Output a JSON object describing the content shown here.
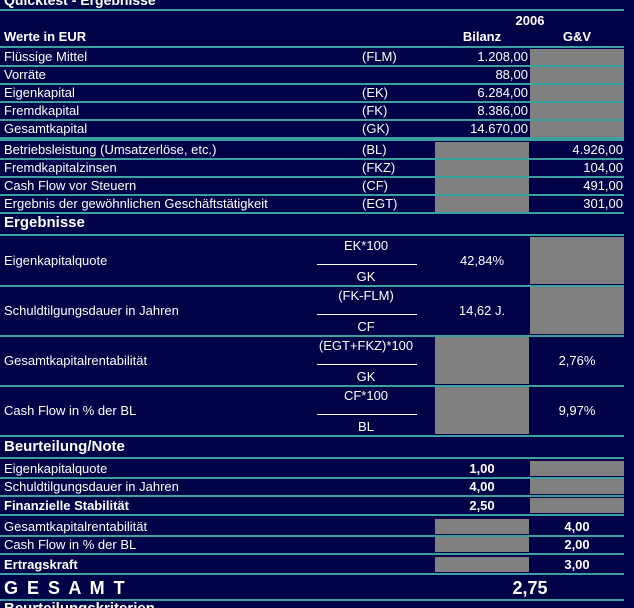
{
  "title": "Quicktest - Ergebnisse",
  "header": {
    "year": "2006",
    "unit_label": "Werte in EUR",
    "col_bilanz": "Bilanz",
    "col_guv": "G&V"
  },
  "inputs": [
    {
      "label": "Flüssige Mittel",
      "abbr": "(FLM)",
      "bilanz": "1.208,00"
    },
    {
      "label": "Vorräte",
      "bilanz": "88,00"
    },
    {
      "label": "Eigenkapital",
      "abbr": "(EK)",
      "bilanz": "6.284,00"
    },
    {
      "label": "Fremdkapital",
      "abbr": "(FK)",
      "bilanz": "8.386,00"
    },
    {
      "label": "Gesamtkapital",
      "abbr": "(GK)",
      "bilanz": "14.670,00"
    },
    {
      "label": "Betriebsleistung (Umsatzerlöse, etc.)",
      "abbr": "(BL)",
      "guv": "4.926,00"
    },
    {
      "label": "Fremdkapitalzinsen",
      "abbr": "(FKZ)",
      "guv": "104,00"
    },
    {
      "label": "Cash Flow vor Steuern",
      "abbr": "(CF)",
      "guv": "491,00"
    },
    {
      "label": "Ergebnis der gewöhnlichen Geschäftstätigkeit",
      "abbr": "(EGT)",
      "guv": "301,00"
    }
  ],
  "results": {
    "title": "Ergebnisse",
    "rows": [
      {
        "label": "Eigenkapitalquote",
        "numerator": "EK*100",
        "denominator": "GK",
        "bilanz": "42,84%"
      },
      {
        "label": "Schuldtilgungsdauer in Jahren",
        "numerator": "(FK-FLM)",
        "denominator": "CF",
        "bilanz": "14,62 J."
      },
      {
        "label": "Gesamtkapitalrentabilität",
        "numerator": "(EGT+FKZ)*100",
        "denominator": "GK",
        "guv": "2,76%"
      },
      {
        "label": "Cash Flow in % der BL",
        "numerator": "CF*100",
        "denominator": "BL",
        "guv": "9,97%"
      }
    ]
  },
  "rating": {
    "title": "Beurteilung/Note",
    "rows": [
      {
        "label": "Eigenkapitalquote",
        "bilanz": "1,00"
      },
      {
        "label": "Schuldtilgungsdauer in Jahren",
        "bilanz": "4,00"
      },
      {
        "label": "Finanzielle Stabilität",
        "bilanz": "2,50",
        "bold": true
      },
      {
        "label": "Gesamtkapitalrentabilität",
        "guv": "4,00"
      },
      {
        "label": "Cash Flow in % der BL",
        "guv": "2,00"
      },
      {
        "label": "Ertragskraft",
        "guv": "3,00",
        "bold": true
      }
    ]
  },
  "total": {
    "label": "G E S A M T",
    "value": "2,75"
  },
  "footer": "Beurteilungskriterien"
}
